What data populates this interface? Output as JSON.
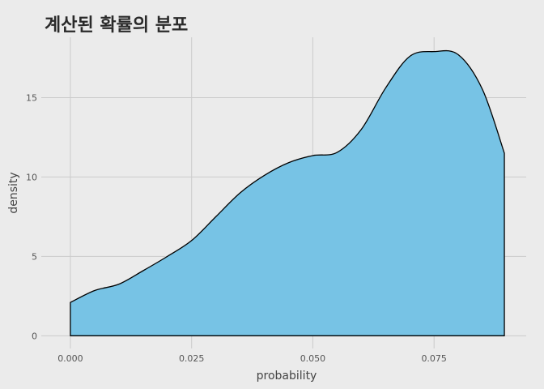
{
  "chart_data": {
    "type": "area",
    "title": "계산된 확률의 분포",
    "xlabel": "probability",
    "ylabel": "density",
    "xlim": [
      -0.006,
      0.094
    ],
    "ylim": [
      -0.8,
      18.8
    ],
    "x_ticks": [
      0.0,
      0.025,
      0.05,
      0.075
    ],
    "x_tick_labels": [
      "0.000",
      "0.025",
      "0.050",
      "0.075"
    ],
    "y_ticks": [
      0,
      5,
      10,
      15
    ],
    "y_tick_labels": [
      "0",
      "5",
      "10",
      "15"
    ],
    "grid": true,
    "legend": "none",
    "fill_color": "#77c3e5",
    "line_color": "#000000",
    "background_color": "#ebebeb",
    "grid_color": "#cbcbcb",
    "x": [
      0.0,
      0.005,
      0.01,
      0.015,
      0.02,
      0.025,
      0.03,
      0.035,
      0.04,
      0.045,
      0.05,
      0.055,
      0.06,
      0.065,
      0.07,
      0.075,
      0.08,
      0.085,
      0.0895
    ],
    "y": [
      2.1,
      2.85,
      3.25,
      4.1,
      5.0,
      6.0,
      7.5,
      9.0,
      10.1,
      10.9,
      11.35,
      11.55,
      13.0,
      15.6,
      17.6,
      17.9,
      17.7,
      15.5,
      11.5
    ]
  }
}
